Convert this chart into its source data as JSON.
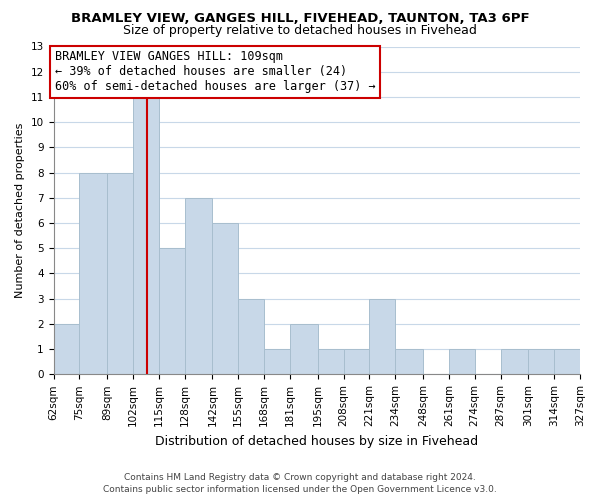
{
  "title": "BRAMLEY VIEW, GANGES HILL, FIVEHEAD, TAUNTON, TA3 6PF",
  "subtitle": "Size of property relative to detached houses in Fivehead",
  "xlabel": "Distribution of detached houses by size in Fivehead",
  "ylabel": "Number of detached properties",
  "bar_color": "#c8d8e8",
  "bar_edge_color": "#a8bece",
  "vline_color": "#cc0000",
  "vline_x": 109,
  "bin_edges": [
    62,
    75,
    89,
    102,
    115,
    128,
    142,
    155,
    168,
    181,
    195,
    208,
    221,
    234,
    248,
    261,
    274,
    287,
    301,
    314,
    327
  ],
  "bin_labels": [
    "62sqm",
    "75sqm",
    "89sqm",
    "102sqm",
    "115sqm",
    "128sqm",
    "142sqm",
    "155sqm",
    "168sqm",
    "181sqm",
    "195sqm",
    "208sqm",
    "221sqm",
    "234sqm",
    "248sqm",
    "261sqm",
    "274sqm",
    "287sqm",
    "301sqm",
    "314sqm",
    "327sqm"
  ],
  "counts": [
    2,
    8,
    8,
    11,
    5,
    7,
    6,
    3,
    1,
    2,
    1,
    1,
    3,
    1,
    0,
    1,
    0,
    1,
    1,
    1
  ],
  "ylim": [
    0,
    13
  ],
  "yticks": [
    0,
    1,
    2,
    3,
    4,
    5,
    6,
    7,
    8,
    9,
    10,
    11,
    12,
    13
  ],
  "annotation_title": "BRAMLEY VIEW GANGES HILL: 109sqm",
  "annotation_line1": "← 39% of detached houses are smaller (24)",
  "annotation_line2": "60% of semi-detached houses are larger (37) →",
  "footer_line1": "Contains HM Land Registry data © Crown copyright and database right 2024.",
  "footer_line2": "Contains public sector information licensed under the Open Government Licence v3.0.",
  "background_color": "#ffffff",
  "grid_color": "#c8d8e8",
  "title_fontsize": 9.5,
  "subtitle_fontsize": 9,
  "annotation_fontsize": 8.5,
  "ylabel_fontsize": 8,
  "xlabel_fontsize": 9,
  "tick_fontsize": 7.5,
  "footer_fontsize": 6.5
}
